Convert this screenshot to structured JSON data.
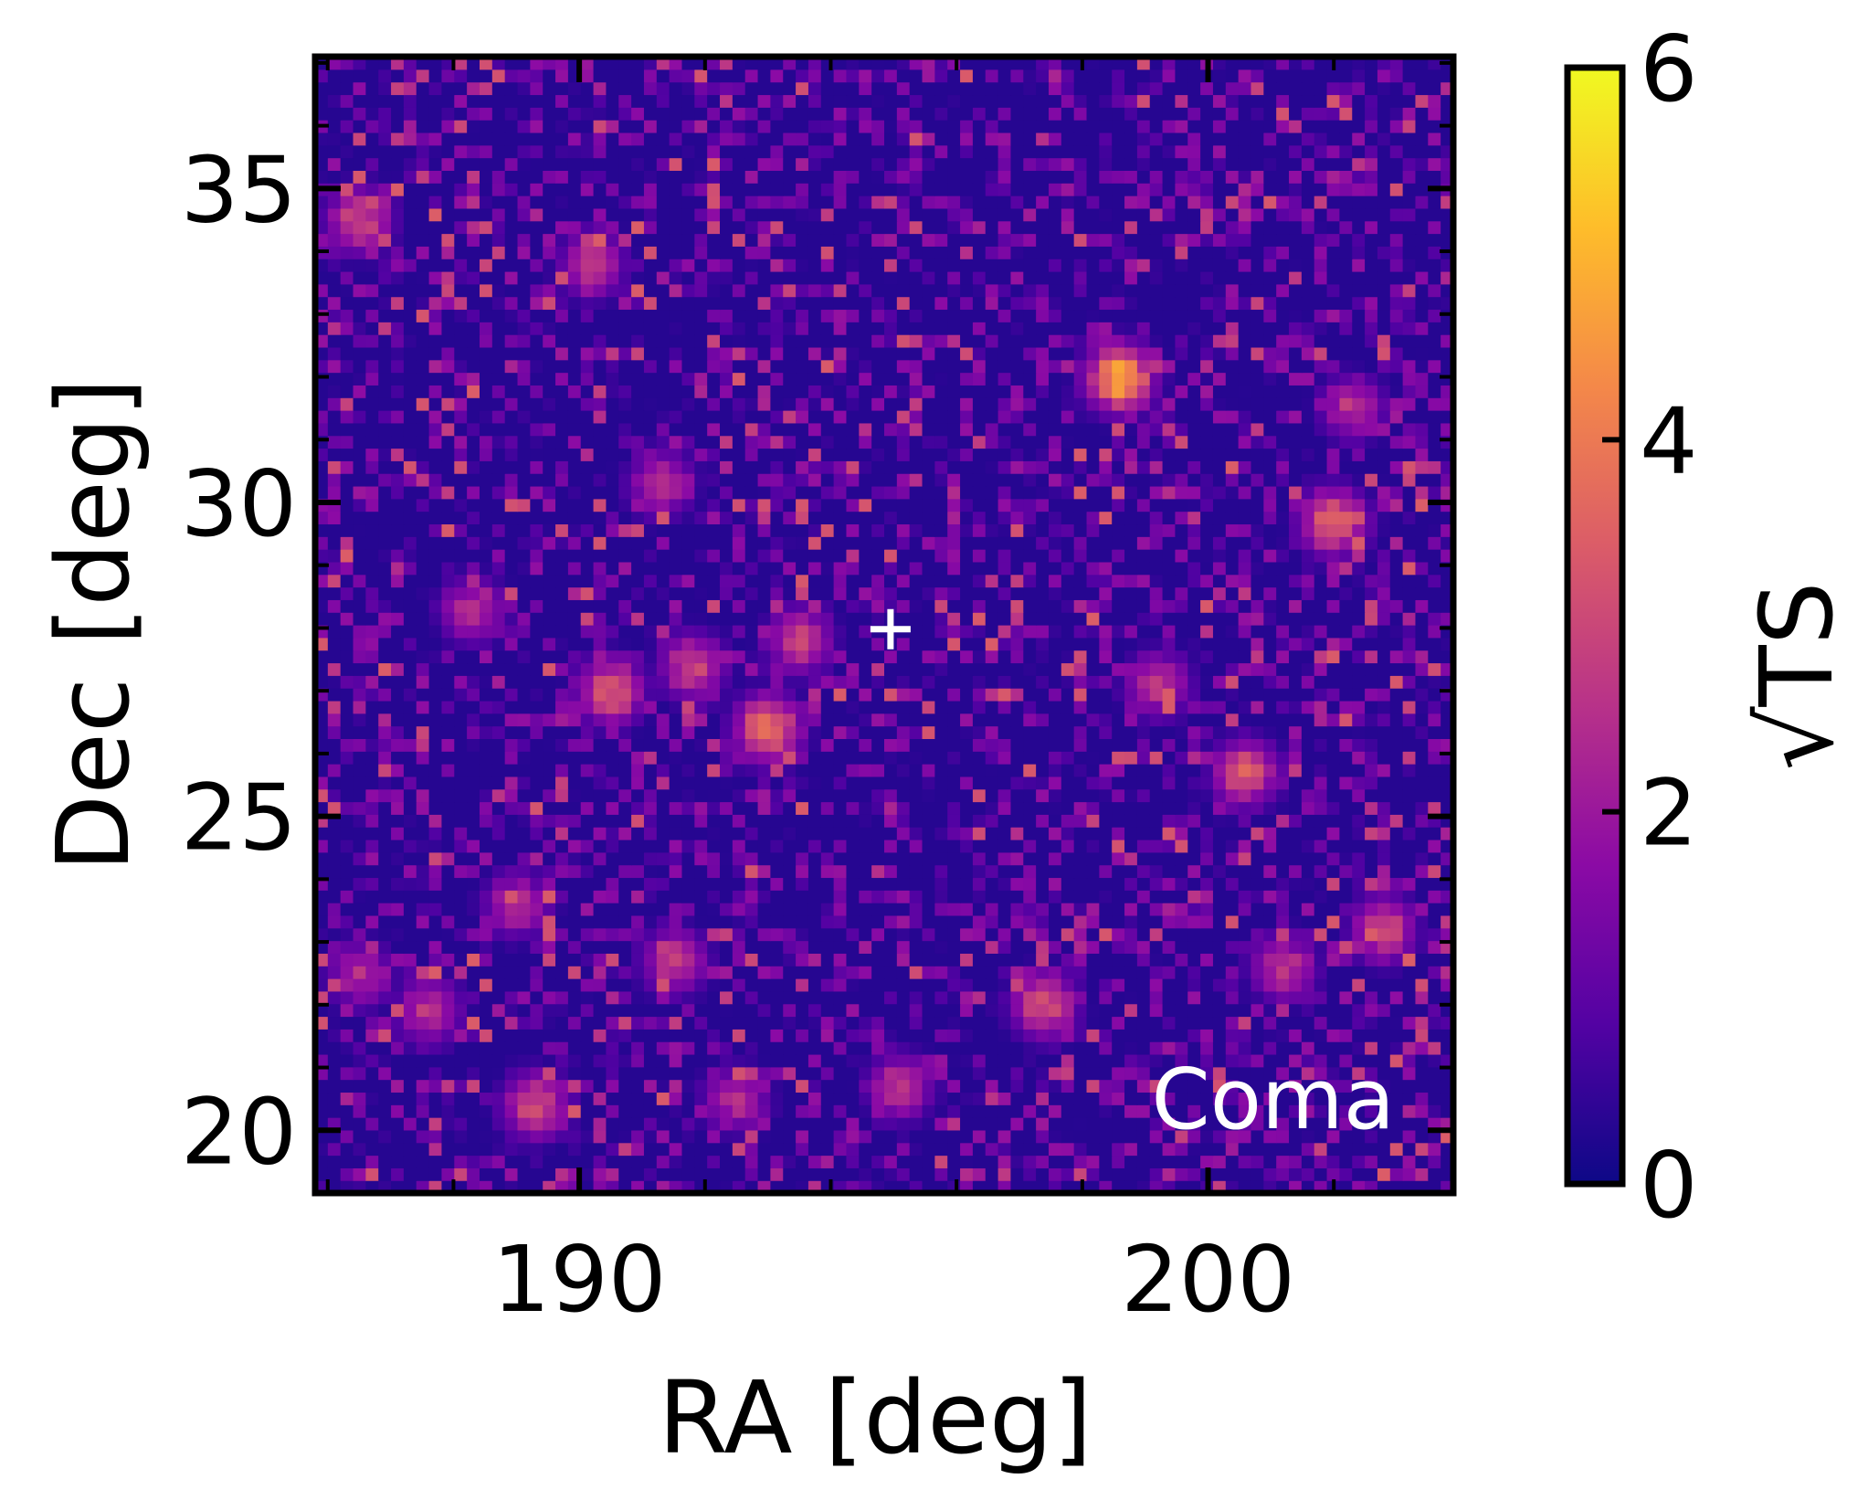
{
  "chart_data": {
    "type": "heatmap",
    "xlabel": "RA [deg]",
    "ylabel": "Dec [deg]",
    "xlim": [
      185.8,
      203.9
    ],
    "ylim": [
      19.0,
      37.1
    ],
    "x_ticks": [
      190,
      200
    ],
    "y_ticks": [
      20,
      25,
      30,
      35
    ],
    "x_minor_step": 2,
    "y_minor_step": 1,
    "grid": false,
    "annotation": "Coma",
    "marker": {
      "symbol": "+",
      "ra": 194.95,
      "dec": 27.98,
      "color": "#ffffff"
    },
    "colorbar": {
      "label": "√TS",
      "range": [
        0,
        6
      ],
      "ticks": [
        "0",
        "2",
        "4",
        "6"
      ],
      "colormap": "plasma",
      "colors": [
        "#0d0887",
        "#5302a3",
        "#8b0aa5",
        "#b83289",
        "#db5c68",
        "#f48849",
        "#febd2a",
        "#f0f921"
      ]
    },
    "grid_cells": {
      "nx": 90,
      "ny": 90,
      "background_value": 0.3
    },
    "hotspots": [
      {
        "ra": 198.6,
        "dec": 32.0,
        "value": 5.6
      },
      {
        "ra": 193.0,
        "dec": 26.4,
        "value": 4.6
      },
      {
        "ra": 202.0,
        "dec": 29.7,
        "value": 4.4
      },
      {
        "ra": 190.5,
        "dec": 27.0,
        "value": 4.0
      },
      {
        "ra": 189.3,
        "dec": 20.4,
        "value": 3.6
      },
      {
        "ra": 186.5,
        "dec": 34.5,
        "value": 3.5
      },
      {
        "ra": 200.6,
        "dec": 25.7,
        "value": 3.8
      },
      {
        "ra": 197.4,
        "dec": 22.0,
        "value": 3.6
      },
      {
        "ra": 191.8,
        "dec": 27.4,
        "value": 3.4
      },
      {
        "ra": 193.5,
        "dec": 27.8,
        "value": 3.2
      },
      {
        "ra": 191.5,
        "dec": 22.7,
        "value": 3.1
      },
      {
        "ra": 202.8,
        "dec": 23.2,
        "value": 3.4
      },
      {
        "ra": 187.6,
        "dec": 21.9,
        "value": 3.0
      },
      {
        "ra": 190.2,
        "dec": 33.8,
        "value": 3.0
      },
      {
        "ra": 199.2,
        "dec": 27.1,
        "value": 3.0
      },
      {
        "ra": 195.1,
        "dec": 20.7,
        "value": 3.1
      },
      {
        "ra": 189.0,
        "dec": 23.6,
        "value": 2.8
      },
      {
        "ra": 201.2,
        "dec": 22.6,
        "value": 3.0
      },
      {
        "ra": 192.5,
        "dec": 20.5,
        "value": 2.8
      },
      {
        "ra": 191.3,
        "dec": 30.3,
        "value": 2.8
      },
      {
        "ra": 188.3,
        "dec": 28.3,
        "value": 2.8
      },
      {
        "ra": 186.5,
        "dec": 22.5,
        "value": 2.7
      },
      {
        "ra": 202.3,
        "dec": 31.5,
        "value": 2.7
      }
    ]
  }
}
